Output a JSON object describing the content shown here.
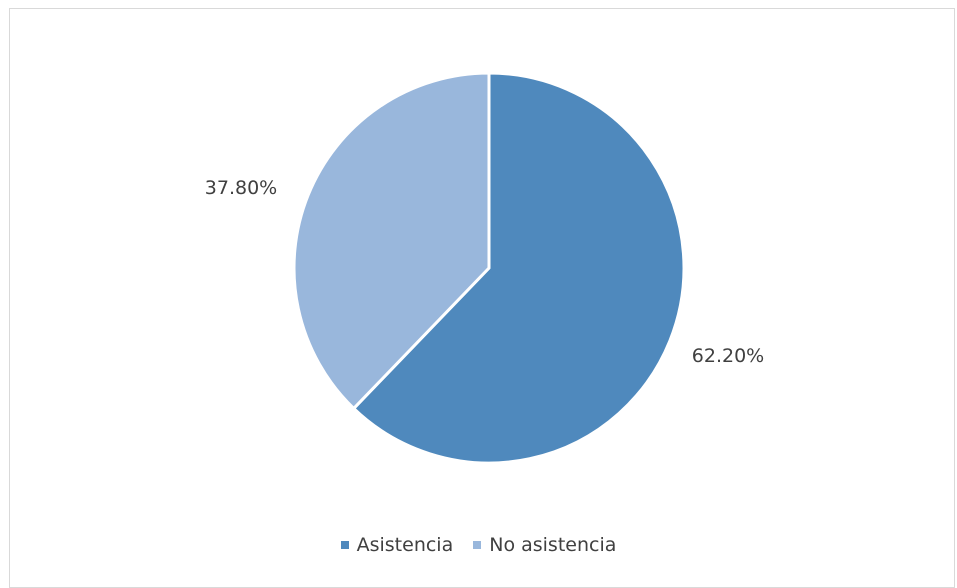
{
  "chart_data": {
    "type": "pie",
    "series": [
      {
        "values": [
          62.2,
          37.8
        ]
      }
    ],
    "categories": [
      "Asistencia",
      "No asistencia"
    ],
    "values": [
      62.2,
      37.8
    ],
    "data_labels": [
      "62.20%",
      "37.80%"
    ],
    "colors": [
      "#4f89bd",
      "#99b7dc"
    ],
    "legend_position": "bottom",
    "legend": [
      "Asistencia",
      "No asistencia"
    ]
  }
}
